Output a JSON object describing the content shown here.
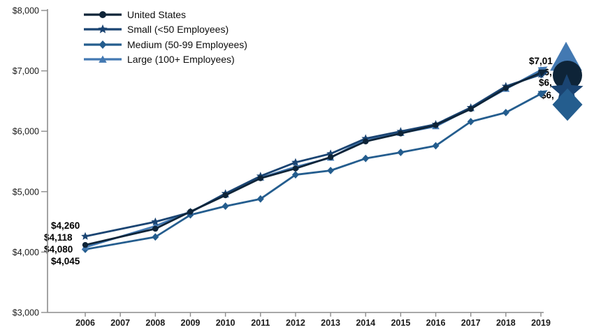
{
  "chart_data": {
    "type": "line",
    "title": "",
    "xlabel": "",
    "ylabel": "",
    "grid": false,
    "legend_position": "top-left",
    "ylim": [
      3000,
      8000
    ],
    "y_tick_values": [
      8000,
      7000,
      6000,
      5000,
      4000,
      3000
    ],
    "y_tick_labels": [
      "$8,000",
      "$7,000",
      "$6,000",
      "$5,000",
      "$4,000",
      "$3,000"
    ],
    "x_tick_labels": [
      "2006",
      "2007",
      "2008",
      "2009",
      "2010",
      "2011",
      "2012",
      "2013",
      "2014",
      "2015",
      "2016",
      "2017",
      "2018",
      "2019"
    ],
    "x": [
      2006,
      2008,
      2009,
      2010,
      2011,
      2012,
      2013,
      2014,
      2015,
      2016,
      2017,
      2018,
      2019
    ],
    "note_no_data_year": "2007",
    "series": [
      {
        "name": "United States",
        "marker": "circle",
        "color": "#0e2438",
        "values": [
          4118,
          4386,
          4669,
          4940,
          5222,
          5384,
          5571,
          5832,
          5963,
          6101,
          6368,
          6715,
          6972
        ],
        "first_point_label": "$4,118",
        "last_point_label_visible": "$6,"
      },
      {
        "name": "Small (<50 Employees)",
        "marker": "star",
        "color": "#1a4472",
        "values": [
          4260,
          4501,
          4658,
          4970,
          5258,
          5485,
          5628,
          5880,
          5998,
          6115,
          6393,
          6745,
          6940
        ],
        "first_point_label": "$4,260",
        "last_point_label_visible": "$6,"
      },
      {
        "name": "Medium (50-99 Employees)",
        "marker": "diamond",
        "color": "#245d8e",
        "values": [
          4045,
          4250,
          4615,
          4760,
          4880,
          5280,
          5350,
          5550,
          5650,
          5760,
          6160,
          6310,
          6620
        ],
        "first_point_label": "$4,045",
        "last_point_label_visible": "$6,"
      },
      {
        "name": "Large (100+ Employees)",
        "marker": "triangle",
        "color": "#4379b2",
        "values": [
          4080,
          4430,
          4669,
          4950,
          5230,
          5410,
          5560,
          5870,
          5970,
          6080,
          6380,
          6700,
          7012
        ],
        "first_point_label": "$4,080",
        "last_point_label_visible": "$7,01"
      }
    ],
    "axis_color": "#8c8c8c",
    "tick_label_color": "#1a1a1a"
  }
}
